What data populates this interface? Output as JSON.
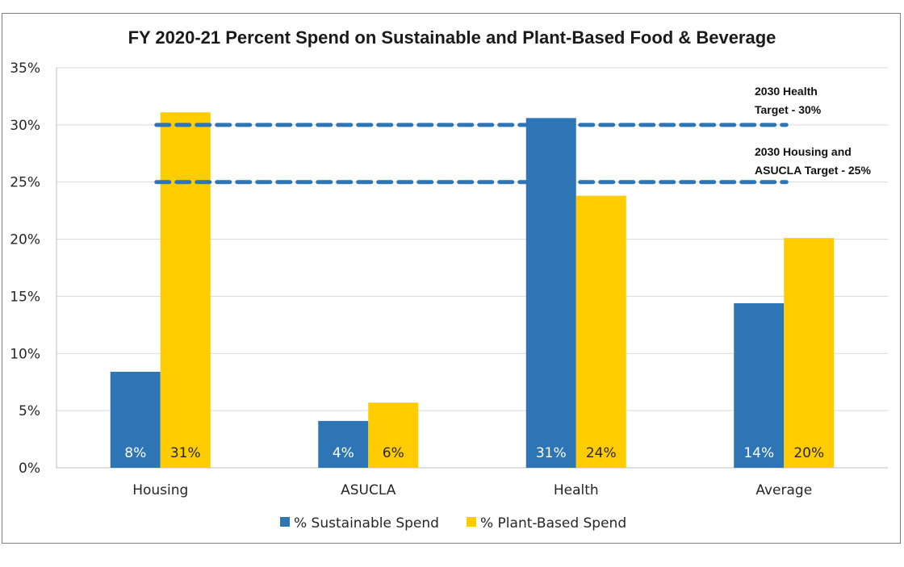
{
  "chart_data": {
    "type": "bar",
    "title": "FY 2020-21 Percent Spend on Sustainable and Plant-Based Food & Beverage",
    "categories": [
      "Housing",
      "ASUCLA",
      "Health",
      "Average"
    ],
    "series": [
      {
        "name": "% Sustainable Spend",
        "color": "#2e75b6",
        "values": [
          8.4,
          4.1,
          30.6,
          14.4
        ],
        "labels": [
          "8%",
          "4%",
          "31%",
          "14%"
        ]
      },
      {
        "name": "% Plant-Based Spend",
        "color": "#ffcc00",
        "values": [
          31.1,
          5.7,
          23.8,
          20.1
        ],
        "labels": [
          "31%",
          "6%",
          "24%",
          "20%"
        ]
      }
    ],
    "ylim": [
      0,
      35
    ],
    "yticks": [
      {
        "value": 0,
        "label": "0%"
      },
      {
        "value": 5,
        "label": "5%"
      },
      {
        "value": 10,
        "label": "10%"
      },
      {
        "value": 15,
        "label": "15%"
      },
      {
        "value": 20,
        "label": "20%"
      },
      {
        "value": 25,
        "label": "25%"
      },
      {
        "value": 30,
        "label": "30%"
      },
      {
        "value": 35,
        "label": "35%"
      }
    ],
    "grid": true,
    "legend_position": "bottom",
    "targets": [
      {
        "value": 30,
        "color": "#2e75b6",
        "label_lines": [
          "2030 Health",
          "Target - 30%"
        ]
      },
      {
        "value": 25,
        "color": "#2e75b6",
        "label_lines": [
          "2030 Housing and",
          "ASUCLA Target - 25%"
        ]
      }
    ]
  }
}
